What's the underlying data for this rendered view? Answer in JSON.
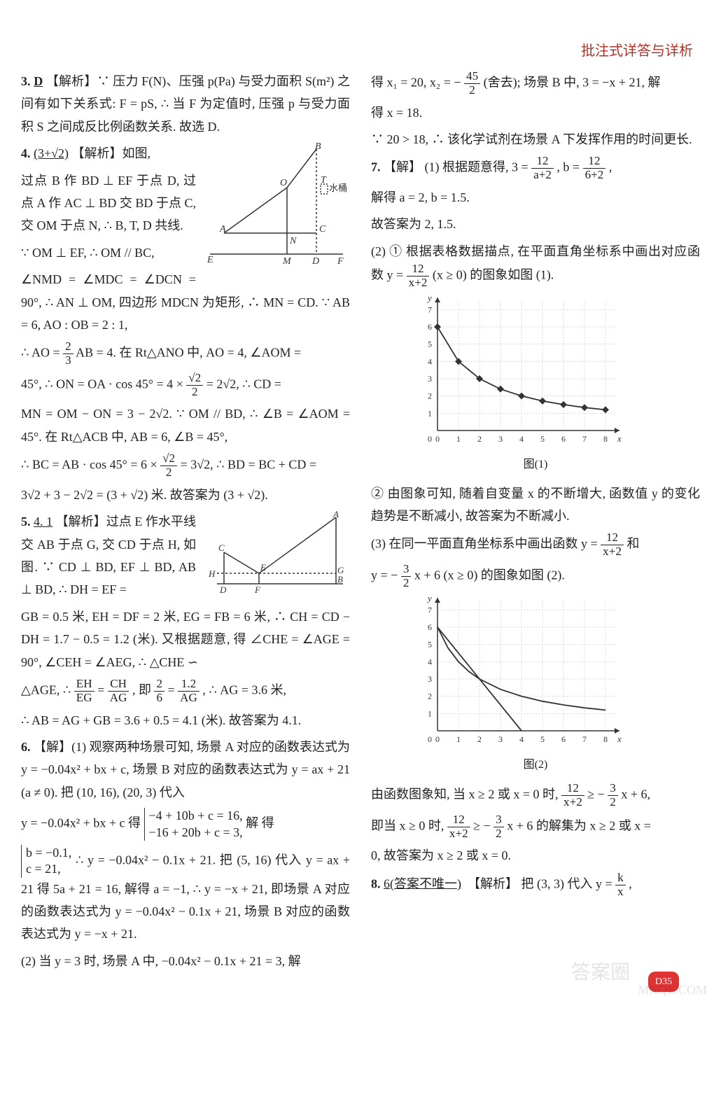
{
  "header": {
    "title": "批注式详答与详析"
  },
  "page_badge": "D35",
  "q3": {
    "num": "3.",
    "ans": "D",
    "label": "【解析】",
    "text": "∵ 压力 F(N)、压强 p(Pa) 与受力面积 S(m²) 之间有如下关系式: F = pS, ∴ 当 F 为定值时, 压强 p 与受力面积 S 之间成反比例函数关系. 故选 D."
  },
  "q4": {
    "num": "4.",
    "ans": "(3+√2)",
    "label": "【解析】",
    "l1": "如图,",
    "l2": "过点 B 作 BD ⊥ EF 于点 D, 过点 A 作 AC ⊥ BD 交 BD 于点 C, 交 OM 于点 N, ∴ B, T, D 共线.",
    "l3": "∵ OM ⊥ EF, ∴ OM // BC,",
    "l4": "∠NMD = ∠MDC = ∠DCN = 90°, ∴ AN ⊥ OM, 四边形 MDCN 为矩形, ∴ MN = CD. ∵ AB = 6, AO : OB = 2 : 1,",
    "l5a": "∴ AO = ",
    "l5b": "AB = 4. 在 Rt△ANO 中, AO = 4, ∠AOM =",
    "l6a": "45°, ∴ ON = OA · cos 45° = 4 × ",
    "l6b": " = 2√2, ∴ CD =",
    "l7": "MN = OM − ON = 3 − 2√2. ∵ OM // BD, ∴ ∠B = ∠AOM = 45°. 在 Rt△ACB 中, AB = 6, ∠B = 45°,",
    "l8a": "∴ BC = AB · cos 45° = 6 × ",
    "l8b": " = 3√2, ∴ BD = BC + CD =",
    "l9": "3√2 + 3 − 2√2 = (3 + √2) 米. 故答案为 (3 + √2).",
    "diagram": {
      "labels": {
        "A": "A",
        "B": "B",
        "O": "O",
        "T": "T",
        "C": "C",
        "N": "N",
        "E": "E",
        "M": "M",
        "D": "D",
        "F": "F",
        "bucket": "水桶"
      },
      "colors": {
        "stroke": "#333333",
        "dash": "#333333"
      }
    }
  },
  "q5": {
    "num": "5.",
    "ans": "4. 1",
    "label": "【解析】",
    "l1": "过点 E 作水平线交 AB 于点 G, 交 CD 于点 H, 如图. ∵ CD ⊥ BD, EF ⊥ BD, AB ⊥ BD, ∴ DH = EF =",
    "l2": "GB = 0.5 米, EH = DF = 2 米, EG = FB = 6 米, ∴ CH = CD − DH = 1.7 − 0.5 = 1.2 (米). 又根据题意, 得 ∠CHE = ∠AGE = 90°, ∠CEH = ∠AEG, ∴ △CHE ∽",
    "l3a": "△AGE, ∴ ",
    "l3b": " = ",
    "l3c": ", 即 ",
    "l3d": " = ",
    "l3e": ", ∴ AG = 3.6 米,",
    "l4": "∴ AB = AG + GB = 3.6 + 0.5 = 4.1 (米). 故答案为 4.1.",
    "diagram": {
      "labels": {
        "A": "A",
        "B": "B",
        "C": "C",
        "D": "D",
        "E": "E",
        "F": "F",
        "G": "G",
        "H": "H"
      }
    }
  },
  "q6": {
    "num": "6.",
    "label": "【解】",
    "p1": "(1) 观察两种场景可知, 场景 A 对应的函数表达式为 y = −0.04x² + bx + c, 场景 B 对应的函数表达式为 y = ax + 21 (a ≠ 0). 把 (10, 16), (20, 3) 代入",
    "p2a": "y = −0.04x² + bx + c 得 ",
    "sys_top": "−4 + 10b + c = 16,",
    "sys_bot": "−16 + 20b + c = 3,",
    "p2b": " 解 得",
    "sol_top": "b = −0.1,",
    "sol_bot": "c = 21,",
    "p3": "∴ y = −0.04x² − 0.1x + 21. 把 (5, 16) 代入 y = ax + 21 得 5a + 21 = 16, 解得 a = −1, ∴ y = −x + 21, 即场景 A 对应的函数表达式为 y = −0.04x² − 0.1x + 21, 场景 B 对应的函数表达式为 y = −x + 21.",
    "p4": "(2) 当 y = 3 时, 场景 A 中, −0.04x² − 0.1x + 21 = 3, 解",
    "p5a": "得 x₁ = 20, x₂ = − ",
    "p5b": "(舍去); 场景 B 中, 3 = −x + 21, 解",
    "p6": "得 x = 18.",
    "p7": "∵ 20 > 18, ∴ 该化学试剂在场景 A 下发挥作用的时间更长."
  },
  "q7": {
    "num": "7.",
    "label": "【解】",
    "p1a": "(1) 根据题意得, 3 = ",
    "p1b": ", b = ",
    "p1c": ",",
    "p2": "解得 a = 2, b = 1.5.",
    "p3": "故答案为 2, 1.5.",
    "p4a": "(2) ① 根据表格数据描点, 在平面直角坐标系中画出对应函数 y = ",
    "p4b": " (x ≥ 0) 的图象如图 (1).",
    "chart1": {
      "caption": "图(1)",
      "type": "line",
      "xlim": [
        0,
        8.5
      ],
      "ylim": [
        0,
        7.5
      ],
      "xticks": [
        0,
        1,
        2,
        3,
        4,
        5,
        6,
        7,
        8
      ],
      "yticks": [
        1,
        2,
        3,
        4,
        5,
        6,
        7
      ],
      "grid_color": "#d9d9d9",
      "axis_color": "#333333",
      "curve_color": "#333333",
      "marker": "diamond",
      "marker_size": 5,
      "marker_color": "#333333",
      "points": [
        [
          0,
          6
        ],
        [
          1,
          4
        ],
        [
          2,
          3
        ],
        [
          3,
          2.4
        ],
        [
          4,
          2
        ],
        [
          5,
          1.71
        ],
        [
          6,
          1.5
        ],
        [
          7,
          1.33
        ],
        [
          8,
          1.2
        ]
      ]
    },
    "p5": "② 由图象可知, 随着自变量 x 的不断增大, 函数值 y 的变化趋势是不断减小, 故答案为不断减小.",
    "p6a": "(3) 在同一平面直角坐标系中画出函数 y = ",
    "p6b": " 和",
    "p7a": "y = − ",
    "p7b": "x + 6 (x ≥ 0) 的图象如图 (2).",
    "chart2": {
      "caption": "图(2)",
      "type": "line",
      "xlim": [
        0,
        8.5
      ],
      "ylim": [
        0,
        7.5
      ],
      "xticks": [
        0,
        1,
        2,
        3,
        4,
        5,
        6,
        7,
        8
      ],
      "yticks": [
        1,
        2,
        3,
        4,
        5,
        6,
        7
      ],
      "grid_color": "#d9d9d9",
      "axis_color": "#333333",
      "curve_color": "#333333",
      "line_color": "#333333",
      "curve_points": [
        [
          0,
          6
        ],
        [
          0.5,
          4.8
        ],
        [
          1,
          4
        ],
        [
          1.5,
          3.43
        ],
        [
          2,
          3
        ],
        [
          3,
          2.4
        ],
        [
          4,
          2
        ],
        [
          5,
          1.71
        ],
        [
          6,
          1.5
        ],
        [
          7,
          1.33
        ],
        [
          8,
          1.2
        ]
      ],
      "line_points": [
        [
          0,
          6
        ],
        [
          4,
          0
        ]
      ]
    },
    "p8a": "由函数图象知, 当 x ≥ 2 或 x = 0 时, ",
    "p8b": " ≥ − ",
    "p8c": "x + 6,",
    "p9a": "即当 x ≥ 0 时, ",
    "p9b": " ≥ − ",
    "p9c": "x + 6 的解集为 x ≥ 2 或 x =",
    "p10": "0, 故答案为 x ≥ 2 或 x = 0."
  },
  "q8": {
    "num": "8.",
    "ans": "6(答案不唯一)",
    "label": "【解析】",
    "p1a": "把 (3, 3) 代入 y = ",
    "p1b": ","
  },
  "fracs": {
    "two_thirds": {
      "num": "2",
      "den": "3"
    },
    "root2_2": {
      "num": "√2",
      "den": "2"
    },
    "EH_EG": {
      "num": "EH",
      "den": "EG"
    },
    "CH_AG": {
      "num": "CH",
      "den": "AG"
    },
    "two_six": {
      "num": "2",
      "den": "6"
    },
    "onep2_AG": {
      "num": "1.2",
      "den": "AG"
    },
    "fortyfive_two": {
      "num": "45",
      "den": "2"
    },
    "twelve_ap2": {
      "num": "12",
      "den": "a+2"
    },
    "twelve_6p2": {
      "num": "12",
      "den": "6+2"
    },
    "twelve_xp2": {
      "num": "12",
      "den": "x+2"
    },
    "three_two": {
      "num": "3",
      "den": "2"
    },
    "k_x": {
      "num": "k",
      "den": "x"
    }
  },
  "watermarks": {
    "w1": "MXQE.COM",
    "w2": "答案圈"
  }
}
